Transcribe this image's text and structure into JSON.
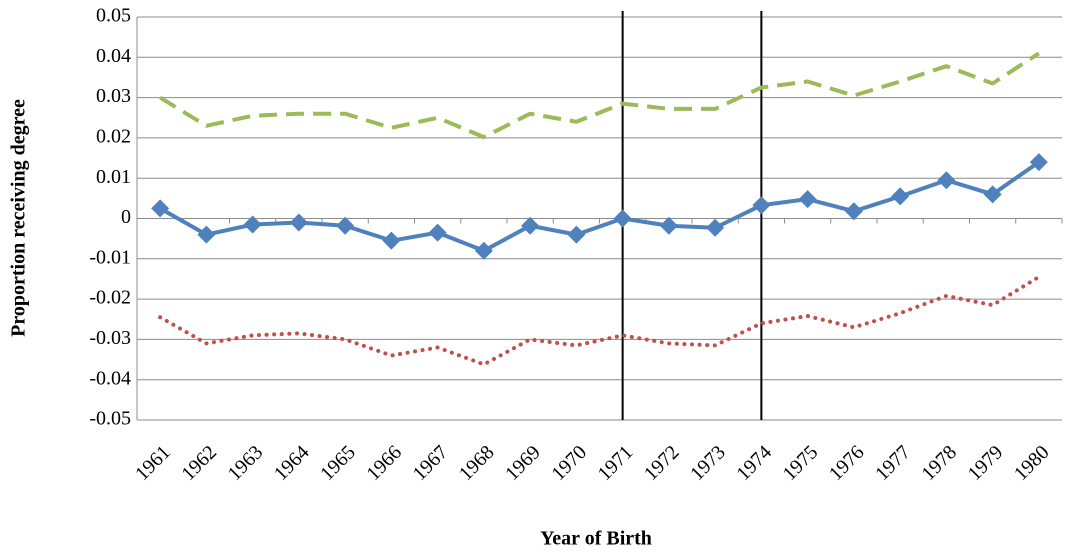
{
  "chart_data": {
    "type": "line",
    "categories": [
      "1961",
      "1962",
      "1963",
      "1964",
      "1965",
      "1966",
      "1967",
      "1968",
      "1969",
      "1970",
      "1971",
      "1972",
      "1973",
      "1974",
      "1975",
      "1976",
      "1977",
      "1978",
      "1979",
      "1980"
    ],
    "series": [
      {
        "color": "#9bbb59",
        "style": "dashed",
        "values": [
          0.03,
          0.023,
          0.0255,
          0.026,
          0.026,
          0.0225,
          0.025,
          0.0202,
          0.026,
          0.024,
          0.0285,
          0.0272,
          0.0272,
          0.0325,
          0.034,
          0.0305,
          0.034,
          0.0378,
          0.0335,
          0.041
        ]
      },
      {
        "color": "#4f81bd",
        "style": "solid-diamond",
        "values": [
          0.0025,
          -0.004,
          -0.0015,
          -0.001,
          -0.0018,
          -0.0055,
          -0.0035,
          -0.008,
          -0.0018,
          -0.004,
          0.0,
          -0.0018,
          -0.0023,
          0.0033,
          0.0048,
          0.0018,
          0.0055,
          0.0095,
          0.006,
          0.014
        ]
      },
      {
        "color": "#c0504d",
        "style": "dotted",
        "values": [
          -0.0245,
          -0.031,
          -0.029,
          -0.0285,
          -0.03,
          -0.034,
          -0.032,
          -0.0362,
          -0.03,
          -0.0315,
          -0.029,
          -0.031,
          -0.0315,
          -0.026,
          -0.0242,
          -0.027,
          -0.0235,
          -0.0192,
          -0.0215,
          -0.0145
        ]
      }
    ],
    "vlines": [
      "1971",
      "1974"
    ],
    "ylim": [
      -0.05,
      0.05
    ],
    "yticks": [
      -0.05,
      -0.04,
      -0.03,
      -0.02,
      -0.01,
      0,
      0.01,
      0.02,
      0.03,
      0.04,
      0.05
    ],
    "grid": true,
    "xlabel": "Year of Birth",
    "ylabel": "Proportion receiving degree"
  }
}
